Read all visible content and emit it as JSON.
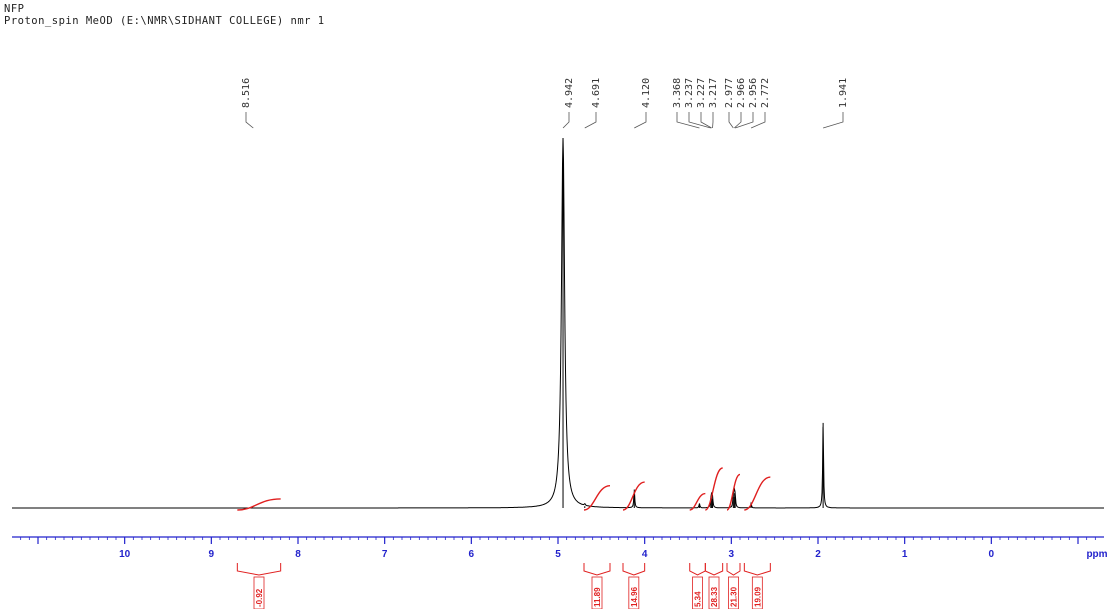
{
  "header": {
    "line1": "NFP",
    "line2": "Proton_spin MeOD (E:\\NMR\\SIDHANT COLLEGE) nmr 1"
  },
  "colors": {
    "spectrum": "#000000",
    "axis": "#2222cc",
    "integral": "#e02020",
    "text": "#333333"
  },
  "chart_data": {
    "type": "line",
    "title": "",
    "xlabel": "ppm",
    "ylabel": "",
    "xlim": [
      11.3,
      -1.3
    ],
    "x_reversed": true,
    "grid": false,
    "ticks": [
      "10",
      "9",
      "8",
      "7",
      "6",
      "5",
      "4",
      "3",
      "2",
      "1",
      "0"
    ],
    "peak_labels": [
      "8.516",
      "4.942",
      "4.691",
      "4.120",
      "3.368",
      "3.237",
      "3.227",
      "3.217",
      "2.977",
      "2.966",
      "2.956",
      "2.772",
      "1.941"
    ],
    "series": [
      {
        "peaks": [
          {
            "ppm": 8.516,
            "height": 0.0
          },
          {
            "ppm": 4.942,
            "height": 1.0
          },
          {
            "ppm": 4.691,
            "height": 0.005
          },
          {
            "ppm": 4.12,
            "height": 0.05
          },
          {
            "ppm": 3.368,
            "height": 0.012
          },
          {
            "ppm": 3.237,
            "height": 0.02
          },
          {
            "ppm": 3.227,
            "height": 0.03
          },
          {
            "ppm": 3.217,
            "height": 0.025
          },
          {
            "ppm": 2.977,
            "height": 0.03
          },
          {
            "ppm": 2.966,
            "height": 0.04
          },
          {
            "ppm": 2.956,
            "height": 0.03
          },
          {
            "ppm": 2.772,
            "height": 0.012
          },
          {
            "ppm": 1.941,
            "height": 0.23
          }
        ]
      }
    ],
    "integrals": [
      {
        "value": "-0.92",
        "from": 8.7,
        "to": 8.2
      },
      {
        "value": "11.89",
        "from": 4.7,
        "to": 4.4
      },
      {
        "value": "14.96",
        "from": 4.25,
        "to": 4.0
      },
      {
        "value": "5.34",
        "from": 3.48,
        "to": 3.3
      },
      {
        "value": "28.33",
        "from": 3.3,
        "to": 3.1
      },
      {
        "value": "21.30",
        "from": 3.05,
        "to": 2.9
      },
      {
        "value": "19.09",
        "from": 2.85,
        "to": 2.55
      }
    ]
  }
}
